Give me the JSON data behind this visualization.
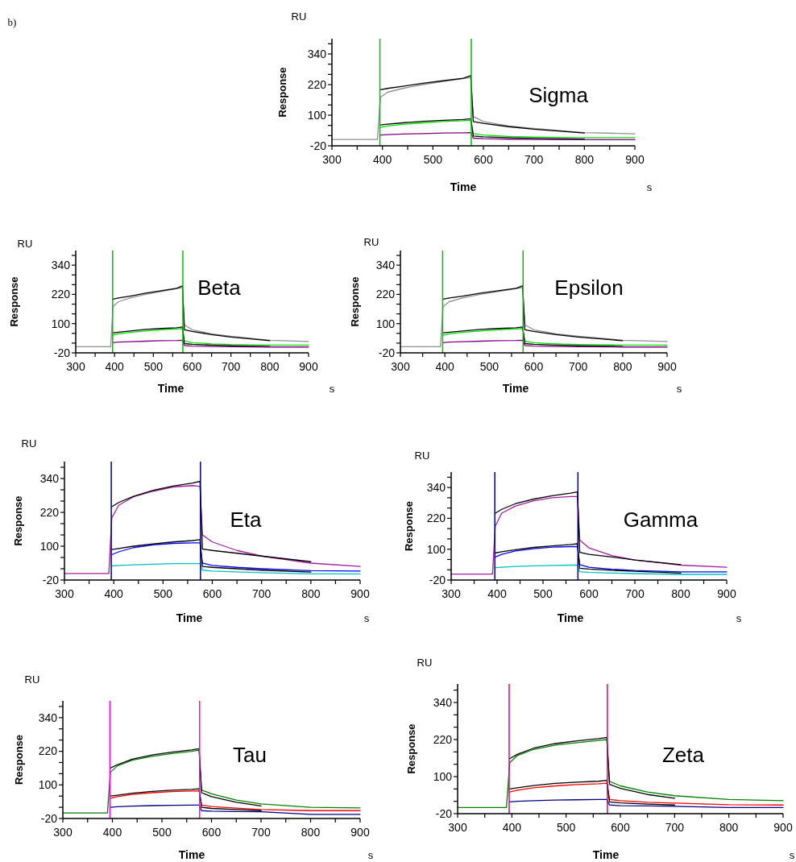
{
  "chart_data": [
    {
      "type": "line",
      "title": "Sigma",
      "xlabel": "Time",
      "ylabel": "Response",
      "annotations": [
        "RU",
        "s",
        "b)"
      ],
      "xlim": [
        300,
        900
      ],
      "ylim": [
        -20,
        400
      ],
      "xticks": [
        300,
        {
          "value": 350,
          "label": null
        },
        400,
        {
          "value": 450,
          "label": null
        },
        500,
        {
          "value": 550,
          "label": null
        },
        600,
        {
          "value": 650,
          "label": null
        },
        700,
        {
          "value": 750,
          "label": null
        },
        800,
        {
          "value": 850,
          "label": null
        },
        900
      ],
      "yticks": [
        -20,
        {
          "value": 20,
          "label": null
        },
        {
          "value": 60,
          "label": null
        },
        100,
        {
          "value": 140,
          "label": null
        },
        {
          "value": 180,
          "label": null
        },
        220,
        {
          "value": 260,
          "label": null
        },
        {
          "value": 300,
          "label": null
        },
        340,
        {
          "value": 380,
          "label": null
        }
      ],
      "x": [
        300,
        390,
        396,
        410,
        440,
        480,
        520,
        560,
        575,
        580,
        600,
        650,
        700,
        800,
        900
      ],
      "series": [
        {
          "color": "#909090",
          "values": [
            5,
            5,
            170,
            190,
            205,
            220,
            232,
            243,
            248,
            95,
            75,
            58,
            48,
            32,
            27
          ]
        },
        {
          "color": "#000000",
          "values": [
            null,
            null,
            200,
            205,
            213,
            225,
            235,
            245,
            255,
            75,
            68,
            55,
            45,
            30,
            null
          ]
        },
        {
          "color": "#00e000",
          "values": [
            null,
            null,
            52,
            58,
            64,
            70,
            75,
            78,
            80,
            28,
            22,
            17,
            14,
            12,
            12
          ]
        },
        {
          "color": "#000000",
          "values": [
            null,
            null,
            62,
            65,
            70,
            76,
            80,
            83,
            86,
            18,
            15,
            12,
            9,
            6,
            null
          ]
        },
        {
          "color": "#800080",
          "values": [
            null,
            null,
            22,
            24,
            26,
            28,
            30,
            31,
            32,
            10,
            8,
            6,
            5,
            4,
            4
          ]
        }
      ],
      "ref_lines": [
        {
          "axis": "x",
          "value": 395,
          "color": "#00c000"
        },
        {
          "axis": "x",
          "value": 576,
          "color": "#00c000"
        }
      ]
    },
    {
      "type": "line",
      "title": "Beta",
      "xlabel": "Time",
      "ylabel": "Response",
      "annotations": [
        "RU",
        "s"
      ],
      "xlim": [
        300,
        900
      ],
      "ylim": [
        -20,
        400
      ],
      "xticks": [
        300,
        {
          "value": 350,
          "label": null
        },
        400,
        {
          "value": 450,
          "label": null
        },
        500,
        {
          "value": 550,
          "label": null
        },
        600,
        {
          "value": 650,
          "label": null
        },
        700,
        {
          "value": 750,
          "label": null
        },
        800,
        {
          "value": 850,
          "label": null
        },
        900
      ],
      "yticks": [
        -20,
        {
          "value": 20,
          "label": null
        },
        {
          "value": 60,
          "label": null
        },
        100,
        {
          "value": 140,
          "label": null
        },
        {
          "value": 180,
          "label": null
        },
        220,
        {
          "value": 260,
          "label": null
        },
        {
          "value": 300,
          "label": null
        },
        340,
        {
          "value": 380,
          "label": null
        }
      ],
      "x": [
        300,
        390,
        396,
        410,
        440,
        480,
        520,
        560,
        575,
        580,
        600,
        650,
        700,
        800,
        900
      ],
      "series": [
        {
          "color": "#909090",
          "values": [
            5,
            5,
            170,
            190,
            205,
            220,
            232,
            243,
            248,
            95,
            75,
            58,
            48,
            32,
            27
          ]
        },
        {
          "color": "#000000",
          "values": [
            null,
            null,
            200,
            205,
            213,
            225,
            235,
            245,
            255,
            75,
            68,
            55,
            45,
            30,
            null
          ]
        },
        {
          "color": "#00e000",
          "values": [
            null,
            null,
            52,
            58,
            64,
            70,
            75,
            78,
            80,
            28,
            22,
            17,
            14,
            12,
            12
          ]
        },
        {
          "color": "#000000",
          "values": [
            null,
            null,
            62,
            65,
            70,
            76,
            80,
            83,
            86,
            18,
            15,
            12,
            9,
            6,
            null
          ]
        },
        {
          "color": "#800080",
          "values": [
            null,
            null,
            22,
            24,
            26,
            28,
            30,
            31,
            32,
            10,
            8,
            6,
            5,
            4,
            4
          ]
        }
      ],
      "ref_lines": [
        {
          "axis": "x",
          "value": 395,
          "color": "#00c000"
        },
        {
          "axis": "x",
          "value": 576,
          "color": "#00c000"
        }
      ]
    },
    {
      "type": "line",
      "title": "Epsilon",
      "xlabel": "Time",
      "ylabel": "Response",
      "annotations": [
        "RU",
        "s"
      ],
      "xlim": [
        300,
        900
      ],
      "ylim": [
        -20,
        400
      ],
      "xticks": [
        300,
        {
          "value": 350,
          "label": null
        },
        400,
        {
          "value": 450,
          "label": null
        },
        500,
        {
          "value": 550,
          "label": null
        },
        600,
        {
          "value": 650,
          "label": null
        },
        700,
        {
          "value": 750,
          "label": null
        },
        800,
        {
          "value": 850,
          "label": null
        },
        900
      ],
      "yticks": [
        -20,
        {
          "value": 20,
          "label": null
        },
        {
          "value": 60,
          "label": null
        },
        100,
        {
          "value": 140,
          "label": null
        },
        {
          "value": 180,
          "label": null
        },
        220,
        {
          "value": 260,
          "label": null
        },
        {
          "value": 300,
          "label": null
        },
        340,
        {
          "value": 380,
          "label": null
        }
      ],
      "x": [
        300,
        390,
        396,
        410,
        440,
        480,
        520,
        560,
        575,
        580,
        600,
        650,
        700,
        800,
        900
      ],
      "series": [
        {
          "color": "#909090",
          "values": [
            5,
            5,
            170,
            190,
            205,
            220,
            232,
            243,
            248,
            95,
            75,
            58,
            48,
            32,
            27
          ]
        },
        {
          "color": "#000000",
          "values": [
            null,
            null,
            200,
            205,
            213,
            225,
            235,
            245,
            255,
            75,
            68,
            55,
            45,
            30,
            null
          ]
        },
        {
          "color": "#00e000",
          "values": [
            null,
            null,
            52,
            58,
            64,
            70,
            75,
            78,
            80,
            28,
            22,
            17,
            14,
            12,
            12
          ]
        },
        {
          "color": "#000000",
          "values": [
            null,
            null,
            62,
            65,
            70,
            76,
            80,
            83,
            86,
            18,
            15,
            12,
            9,
            6,
            null
          ]
        },
        {
          "color": "#800080",
          "values": [
            null,
            null,
            22,
            24,
            26,
            28,
            30,
            31,
            32,
            10,
            8,
            6,
            5,
            4,
            4
          ]
        }
      ],
      "ref_lines": [
        {
          "axis": "x",
          "value": 395,
          "color": "#00c000"
        },
        {
          "axis": "x",
          "value": 576,
          "color": "#00c000"
        }
      ]
    },
    {
      "type": "line",
      "title": "Eta",
      "xlabel": "Time",
      "ylabel": "Response",
      "annotations": [
        "RU",
        "s"
      ],
      "xlim": [
        300,
        900
      ],
      "ylim": [
        -20,
        400
      ],
      "xticks": [
        300,
        {
          "value": 350,
          "label": null
        },
        400,
        {
          "value": 450,
          "label": null
        },
        500,
        {
          "value": 550,
          "label": null
        },
        600,
        {
          "value": 650,
          "label": null
        },
        700,
        {
          "value": 750,
          "label": null
        },
        800,
        {
          "value": 850,
          "label": null
        },
        900
      ],
      "yticks": [
        -20,
        {
          "value": 20,
          "label": null
        },
        {
          "value": 60,
          "label": null
        },
        100,
        {
          "value": 140,
          "label": null
        },
        {
          "value": 180,
          "label": null
        },
        220,
        {
          "value": 260,
          "label": null
        },
        {
          "value": 300,
          "label": null
        },
        340,
        {
          "value": 380,
          "label": null
        }
      ],
      "x": [
        300,
        390,
        396,
        410,
        440,
        480,
        520,
        560,
        575,
        580,
        600,
        650,
        700,
        800,
        900
      ],
      "series": [
        {
          "color": "#a020a0",
          "values": [
            3,
            3,
            200,
            245,
            275,
            295,
            310,
            315,
            312,
            140,
            115,
            85,
            65,
            40,
            28
          ]
        },
        {
          "color": "#000000",
          "values": [
            null,
            null,
            240,
            255,
            277,
            298,
            313,
            324,
            330,
            90,
            85,
            75,
            65,
            45,
            null
          ]
        },
        {
          "color": "#0000ff",
          "values": [
            null,
            null,
            70,
            80,
            95,
            105,
            110,
            112,
            112,
            40,
            32,
            25,
            20,
            13,
            12
          ]
        },
        {
          "color": "#000000",
          "values": [
            null,
            null,
            88,
            92,
            100,
            108,
            115,
            120,
            123,
            28,
            25,
            20,
            15,
            8,
            null
          ]
        },
        {
          "color": "#00c0c0",
          "values": [
            null,
            null,
            30,
            32,
            34,
            36,
            38,
            38,
            38,
            15,
            12,
            9,
            6,
            2,
            2
          ]
        }
      ],
      "ref_lines": [
        {
          "axis": "x",
          "value": 395,
          "color": "#000080"
        },
        {
          "axis": "x",
          "value": 576,
          "color": "#000080"
        }
      ]
    },
    {
      "type": "line",
      "title": "Gamma",
      "xlabel": "Time",
      "ylabel": "Response",
      "annotations": [
        "RU",
        "s"
      ],
      "xlim": [
        300,
        900
      ],
      "ylim": [
        -20,
        400
      ],
      "xticks": [
        300,
        {
          "value": 350,
          "label": null
        },
        400,
        {
          "value": 450,
          "label": null
        },
        500,
        {
          "value": 550,
          "label": null
        },
        600,
        {
          "value": 650,
          "label": null
        },
        700,
        {
          "value": 750,
          "label": null
        },
        800,
        {
          "value": 850,
          "label": null
        },
        900
      ],
      "yticks": [
        -20,
        {
          "value": 20,
          "label": null
        },
        {
          "value": 60,
          "label": null
        },
        100,
        {
          "value": 140,
          "label": null
        },
        {
          "value": 180,
          "label": null
        },
        220,
        {
          "value": 260,
          "label": null
        },
        {
          "value": 300,
          "label": null
        },
        340,
        {
          "value": 380,
          "label": null
        }
      ],
      "x": [
        300,
        390,
        396,
        410,
        440,
        480,
        520,
        560,
        575,
        580,
        600,
        650,
        700,
        800,
        900
      ],
      "series": [
        {
          "color": "#a020a0",
          "values": [
            3,
            3,
            190,
            240,
            268,
            288,
            300,
            305,
            305,
            135,
            105,
            75,
            58,
            38,
            30
          ]
        },
        {
          "color": "#000000",
          "values": [
            null,
            null,
            240,
            255,
            277,
            295,
            308,
            318,
            323,
            88,
            80,
            70,
            58,
            40,
            null
          ]
        },
        {
          "color": "#0000ff",
          "values": [
            null,
            null,
            70,
            80,
            93,
            102,
            108,
            110,
            110,
            40,
            30,
            22,
            17,
            12,
            12
          ]
        },
        {
          "color": "#000000",
          "values": [
            null,
            null,
            85,
            90,
            98,
            107,
            113,
            118,
            121,
            26,
            23,
            18,
            14,
            7,
            null
          ]
        },
        {
          "color": "#00c0c0",
          "values": [
            null,
            null,
            28,
            30,
            33,
            35,
            37,
            38,
            38,
            12,
            10,
            7,
            5,
            2,
            2
          ]
        }
      ],
      "ref_lines": [
        {
          "axis": "x",
          "value": 395,
          "color": "#0000a0"
        },
        {
          "axis": "x",
          "value": 576,
          "color": "#0000a0"
        }
      ]
    },
    {
      "type": "line",
      "title": "Tau",
      "xlabel": "Time",
      "ylabel": "Response",
      "annotations": [
        "RU",
        "s"
      ],
      "xlim": [
        300,
        900
      ],
      "ylim": [
        -20,
        400
      ],
      "xticks": [
        300,
        {
          "value": 350,
          "label": null
        },
        400,
        {
          "value": 450,
          "label": null
        },
        500,
        {
          "value": 550,
          "label": null
        },
        600,
        {
          "value": 650,
          "label": null
        },
        700,
        {
          "value": 750,
          "label": null
        },
        800,
        {
          "value": 850,
          "label": null
        },
        900
      ],
      "yticks": [
        -20,
        {
          "value": 20,
          "label": null
        },
        {
          "value": 60,
          "label": null
        },
        100,
        {
          "value": 140,
          "label": null
        },
        {
          "value": 180,
          "label": null
        },
        220,
        {
          "value": 260,
          "label": null
        },
        {
          "value": 300,
          "label": null
        },
        340,
        {
          "value": 380,
          "label": null
        }
      ],
      "x": [
        300,
        390,
        396,
        410,
        440,
        480,
        520,
        560,
        575,
        580,
        600,
        650,
        700,
        800,
        900
      ],
      "series": [
        {
          "color": "#008000",
          "values": [
            0,
            0,
            145,
            168,
            188,
            202,
            212,
            220,
            224,
            82,
            68,
            46,
            32,
            20,
            18
          ]
        },
        {
          "color": "#000000",
          "values": [
            null,
            null,
            160,
            172,
            192,
            207,
            217,
            225,
            229,
            72,
            58,
            38,
            25,
            null,
            null
          ]
        },
        {
          "color": "#ff0000",
          "values": [
            null,
            null,
            52,
            58,
            66,
            72,
            76,
            78,
            79,
            28,
            23,
            17,
            12,
            8,
            8
          ]
        },
        {
          "color": "#000000",
          "values": [
            null,
            null,
            60,
            63,
            70,
            77,
            81,
            84,
            86,
            20,
            16,
            12,
            8,
            null,
            null
          ]
        },
        {
          "color": "#000080",
          "values": [
            null,
            null,
            20,
            22,
            24,
            26,
            27,
            28,
            28,
            8,
            6,
            5,
            4,
            -5,
            -5
          ]
        }
      ],
      "ref_lines": [
        {
          "axis": "x",
          "value": 395,
          "color": "#ff00ff"
        },
        {
          "axis": "x",
          "value": 576,
          "color": "#ff00ff"
        }
      ]
    },
    {
      "type": "line",
      "title": "Zeta",
      "xlabel": "Time",
      "ylabel": "Response",
      "annotations": [
        "RU",
        "s"
      ],
      "xlim": [
        300,
        900
      ],
      "ylim": [
        -20,
        400
      ],
      "xticks": [
        300,
        {
          "value": 350,
          "label": null
        },
        400,
        {
          "value": 450,
          "label": null
        },
        500,
        {
          "value": 550,
          "label": null
        },
        600,
        {
          "value": 650,
          "label": null
        },
        700,
        {
          "value": 750,
          "label": null
        },
        800,
        {
          "value": 850,
          "label": null
        },
        900
      ],
      "yticks": [
        -20,
        {
          "value": 20,
          "label": null
        },
        {
          "value": 60,
          "label": null
        },
        100,
        {
          "value": 140,
          "label": null
        },
        {
          "value": 180,
          "label": null
        },
        220,
        {
          "value": 260,
          "label": null
        },
        {
          "value": 300,
          "label": null
        },
        340,
        {
          "value": 380,
          "label": null
        }
      ],
      "x": [
        300,
        390,
        396,
        410,
        440,
        480,
        520,
        560,
        575,
        580,
        600,
        650,
        700,
        800,
        900
      ],
      "series": [
        {
          "color": "#008000",
          "values": [
            0,
            0,
            145,
            168,
            188,
            202,
            210,
            217,
            220,
            85,
            70,
            50,
            38,
            26,
            22
          ]
        },
        {
          "color": "#000000",
          "values": [
            null,
            null,
            158,
            172,
            192,
            207,
            216,
            223,
            227,
            75,
            62,
            42,
            30,
            null,
            null
          ]
        },
        {
          "color": "#ff0000",
          "values": [
            null,
            null,
            50,
            56,
            64,
            70,
            74,
            77,
            79,
            26,
            22,
            17,
            14,
            9,
            8
          ]
        },
        {
          "color": "#000000",
          "values": [
            null,
            null,
            60,
            64,
            71,
            78,
            82,
            85,
            88,
            18,
            15,
            11,
            8,
            null,
            null
          ]
        },
        {
          "color": "#000080",
          "values": [
            null,
            null,
            18,
            20,
            22,
            24,
            25,
            26,
            26,
            8,
            6,
            5,
            4,
            0,
            0
          ]
        }
      ],
      "ref_lines": [
        {
          "axis": "x",
          "value": 395,
          "color": "#e00080"
        },
        {
          "axis": "x",
          "value": 576,
          "color": "#e00080"
        }
      ]
    }
  ]
}
